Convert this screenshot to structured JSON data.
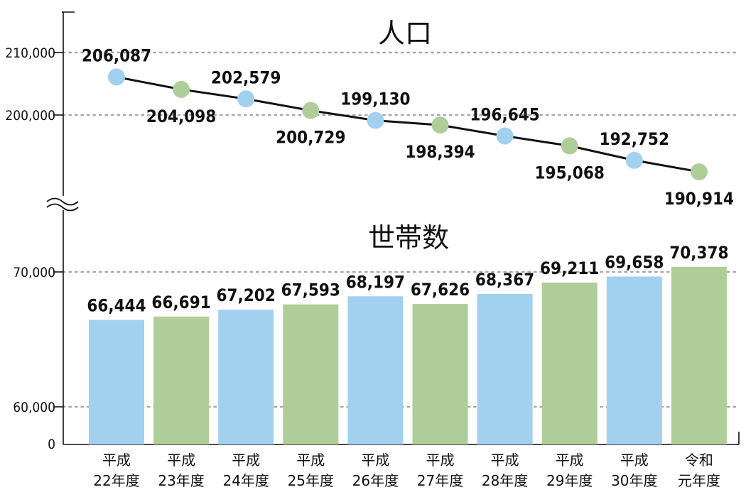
{
  "colors": {
    "blue": "#a2d1ef",
    "green": "#afcd98",
    "line": "#111111",
    "grid": "#a8a8a8"
  },
  "chart_data": [
    {
      "type": "line",
      "title": "人口",
      "ylim": [
        190000,
        216000
      ],
      "yticks": [
        200000,
        210000
      ],
      "ytick_labels": [
        "200,000",
        "210,000"
      ],
      "values": [
        206087,
        204098,
        202579,
        200729,
        199130,
        198394,
        196645,
        195068,
        192752,
        190914
      ],
      "value_labels": [
        "206,087",
        "204,098",
        "202,579",
        "200,729",
        "199,130",
        "198,394",
        "196,645",
        "195,068",
        "192,752",
        "190,914"
      ],
      "grid": true
    },
    {
      "type": "bar",
      "title": "世帯数",
      "ylim": [
        57500,
        73000
      ],
      "yticks": [
        60000,
        70000
      ],
      "ytick_labels": [
        "60,000",
        "70,000"
      ],
      "zero_label": "0",
      "axis_break": true,
      "categories": [
        [
          "平成",
          "22年度"
        ],
        [
          "平成",
          "23年度"
        ],
        [
          "平成",
          "24年度"
        ],
        [
          "平成",
          "25年度"
        ],
        [
          "平成",
          "26年度"
        ],
        [
          "平成",
          "27年度"
        ],
        [
          "平成",
          "28年度"
        ],
        [
          "平成",
          "29年度"
        ],
        [
          "平成",
          "30年度"
        ],
        [
          "令和",
          "元年度"
        ]
      ],
      "values": [
        66444,
        66691,
        67202,
        67593,
        68197,
        67626,
        68367,
        69211,
        69658,
        70378
      ],
      "value_labels": [
        "66,444",
        "66,691",
        "67,202",
        "67,593",
        "68,197",
        "67,626",
        "68,367",
        "69,211",
        "69,658",
        "70,378"
      ],
      "grid": true
    }
  ]
}
